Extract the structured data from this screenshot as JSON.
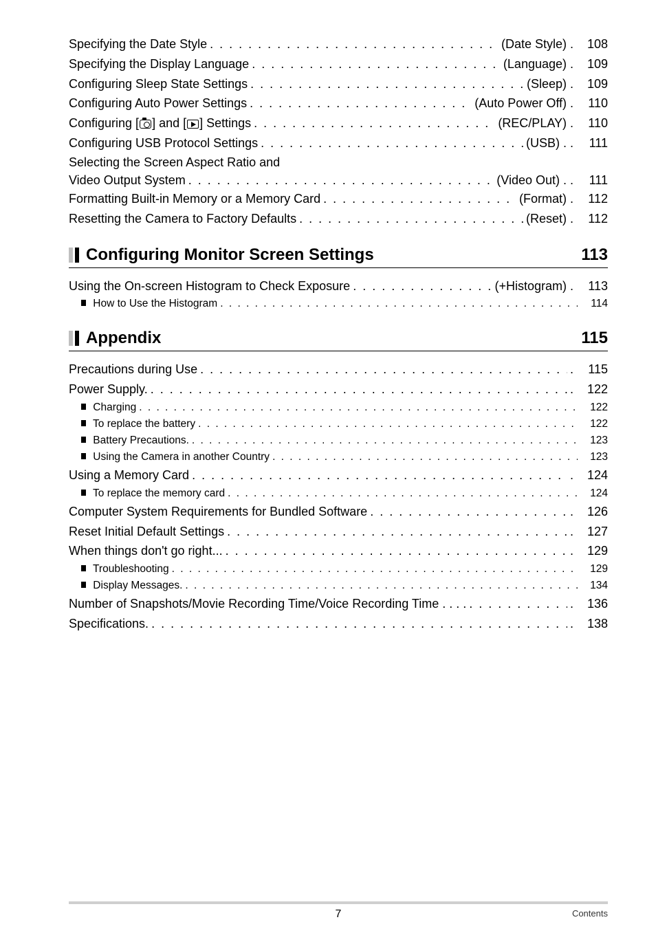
{
  "top_section": {
    "items": [
      {
        "label": "Specifying the Date Style",
        "tag": "(Date Style) .",
        "page": "108"
      },
      {
        "label": "Specifying the Display Language",
        "tag": "(Language) .",
        "page": "109"
      },
      {
        "label": "Configuring Sleep State Settings",
        "tag": "(Sleep) .",
        "page": "109"
      },
      {
        "label": "Configuring Auto Power Settings",
        "tag": "(Auto Power Off) .",
        "page": "110"
      },
      {
        "label_pre": "Configuring [",
        "label_mid": "] and [",
        "label_post": "] Settings",
        "tag": "(REC/PLAY) .",
        "page": "110",
        "has_icons": true
      },
      {
        "label": "Configuring USB Protocol Settings",
        "tag": "(USB) . .",
        "page": "111"
      }
    ],
    "wrap": {
      "line1": "Selecting the Screen Aspect Ratio and",
      "line2_label": "Video Output System",
      "line2_tag": "(Video Out) . .",
      "line2_page": "111"
    },
    "tail": [
      {
        "label": "Formatting Built-in Memory or a Memory Card",
        "tag": "(Format) .",
        "page": "112"
      },
      {
        "label": "Resetting the Camera to Factory Defaults",
        "tag": "(Reset) .",
        "page": "112"
      }
    ]
  },
  "section_monitor": {
    "title": "Configuring Monitor Screen Settings",
    "page": "113",
    "items": [
      {
        "label": "Using the On-screen Histogram to Check Exposure",
        "tag": "(+Histogram) .",
        "page": "113"
      }
    ],
    "subs": [
      {
        "label": "How to Use the Histogram",
        "page": "114"
      }
    ]
  },
  "section_appendix": {
    "title": "Appendix",
    "page": "115",
    "entries": [
      {
        "type": "main",
        "label": "Precautions during Use",
        "tag": ".",
        "page": "115"
      },
      {
        "type": "main",
        "label": "Power Supply.",
        "tag": ".",
        "page": "122"
      },
      {
        "type": "sub",
        "label": "Charging",
        "page": "122"
      },
      {
        "type": "sub",
        "label": "To replace the battery",
        "page": "122"
      },
      {
        "type": "sub",
        "label": "Battery Precautions.",
        "page": "123"
      },
      {
        "type": "sub",
        "label": "Using the Camera in another Country",
        "page": "123"
      },
      {
        "type": "main",
        "label": "Using a Memory Card",
        "tag": ".",
        "page": "124"
      },
      {
        "type": "sub",
        "label": "To replace the memory card",
        "page": "124"
      },
      {
        "type": "main",
        "label": "Computer System Requirements for Bundled Software",
        "tag": ".",
        "page": "126"
      },
      {
        "type": "main",
        "label": "Reset Initial Default Settings",
        "tag": ".",
        "page": "127"
      },
      {
        "type": "main",
        "label": "When things don't go right...",
        "tag": ".",
        "page": "129"
      },
      {
        "type": "sub",
        "label": "Troubleshooting",
        "page": "129"
      },
      {
        "type": "sub",
        "label": "Display Messages.",
        "page": "134"
      },
      {
        "type": "main",
        "label": "Number of Snapshots/Movie Recording Time/Voice Recording Time . . . .",
        "tag_none": true,
        "page": "136",
        "tag": "."
      },
      {
        "type": "main",
        "label": "Specifications.",
        "tag": ".",
        "page": "138"
      }
    ]
  },
  "footer": {
    "page_number": "7",
    "section_label": "Contents"
  }
}
